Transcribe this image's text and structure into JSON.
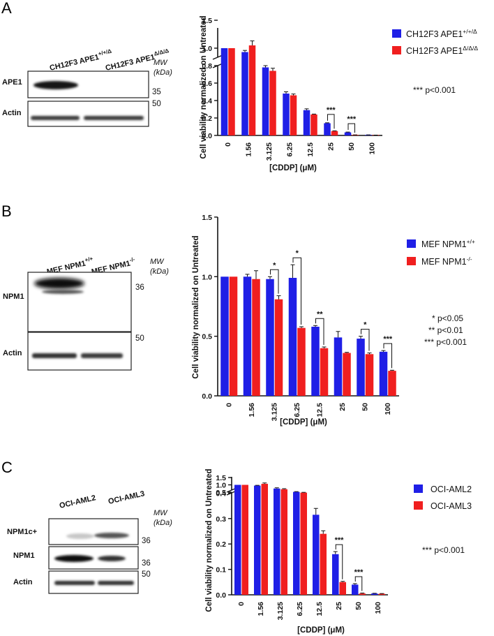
{
  "colors": {
    "series1": "#1f1fe6",
    "series2": "#f01f1f",
    "error_cap": "#2a2a8a"
  },
  "panels": [
    {
      "letter": "A",
      "blot": {
        "lanes": [
          "CH12F3 APE1",
          "CH12F3 APE1"
        ],
        "lane_sups": [
          "+/+/Δ",
          "Δ/Δ/Δ"
        ],
        "mw_title": "MW",
        "mw_unit": "(kDa)",
        "rows": [
          {
            "label": "APE1",
            "mw": "35"
          },
          {
            "label": "Actin",
            "mw": "50"
          }
        ]
      },
      "legend_sups": [
        "+/+/Δ",
        "Δ/Δ/Δ"
      ],
      "significance": [
        "*** p<0.001"
      ],
      "brackets": [
        {
          "x_index": 5,
          "stars": "***"
        },
        {
          "x_index": 6,
          "stars": "***"
        }
      ]
    },
    {
      "letter": "B",
      "blot": {
        "lanes": [
          "MEF NPM1",
          "MEF NPM1"
        ],
        "lane_sups": [
          "+/+",
          "-/-"
        ],
        "mw_title": "MW",
        "mw_unit": "(kDa)",
        "rows": [
          {
            "label": "NPM1",
            "mw": "36"
          },
          {
            "label": "Actin",
            "mw": "50"
          }
        ]
      },
      "legend_sups": [
        "+/+",
        "-/-"
      ],
      "significance": [
        "* p<0.05",
        "** p<0.01",
        "*** p<0.001"
      ],
      "brackets": [
        {
          "x_index": 2,
          "stars": "*"
        },
        {
          "x_index": 3,
          "stars": "*"
        },
        {
          "x_index": 4,
          "stars": "**"
        },
        {
          "x_index": 6,
          "stars": "*"
        },
        {
          "x_index": 7,
          "stars": "***"
        }
      ]
    },
    {
      "letter": "C",
      "blot": {
        "lanes": [
          "OCI-AML2",
          "OCI-AML3"
        ],
        "lane_sups": [
          "",
          ""
        ],
        "mw_title": "MW",
        "mw_unit": "(kDa)",
        "rows": [
          {
            "label": "NPM1c+",
            "mw": "36"
          },
          {
            "label": "NPM1",
            "mw": "36"
          },
          {
            "label": "Actin",
            "mw": "50"
          }
        ]
      },
      "legend_sups": [
        "",
        ""
      ],
      "significance": [
        "*** p<0.001"
      ],
      "brackets": [
        {
          "x_index": 5,
          "stars": "***"
        },
        {
          "x_index": 6,
          "stars": "***"
        }
      ]
    }
  ],
  "chart_data": [
    {
      "type": "bar",
      "title": "",
      "xlabel": "[CDDP] (μM)",
      "ylabel": "Cell viability normalized on Untreated",
      "categories": [
        "0",
        "1.56",
        "3.125",
        "6.25",
        "12.5",
        "25",
        "50",
        "100"
      ],
      "axis_break": {
        "lower_ylim": [
          0,
          0.8
        ],
        "upper_ylim": [
          0.9,
          1.5
        ]
      },
      "lower_ticks": [
        "0.0",
        "0.2",
        "0.4",
        "0.6",
        "0.8"
      ],
      "upper_ticks": [
        "1.0",
        "1.5"
      ],
      "series": [
        {
          "name": "CH12F3 APE1",
          "values": [
            1.0,
            0.93,
            0.78,
            0.48,
            0.29,
            0.14,
            0.035,
            0.005
          ],
          "errors": [
            0.0,
            0.03,
            0.02,
            0.02,
            0.015,
            0.005,
            0.004,
            0.002
          ]
        },
        {
          "name": "CH12F3 APE1",
          "values": [
            1.0,
            1.05,
            0.74,
            0.46,
            0.24,
            0.05,
            0.005,
            0.003
          ],
          "errors": [
            0.0,
            0.08,
            0.03,
            0.015,
            0.005,
            0.003,
            0.002,
            0.001
          ]
        }
      ]
    },
    {
      "type": "bar",
      "title": "",
      "xlabel": "[CDDP] (μM)",
      "ylabel": "Cell viability normalized on Untreated",
      "categories": [
        "0",
        "1.56",
        "3.125",
        "6.25",
        "12.5",
        "25",
        "50",
        "100"
      ],
      "ylim": [
        0,
        1.5
      ],
      "yticks": [
        "0.0",
        "0.5",
        "1.0",
        "1.5"
      ],
      "series": [
        {
          "name": "MEF NPM1",
          "values": [
            1.0,
            1.0,
            0.98,
            0.99,
            0.58,
            0.49,
            0.48,
            0.37
          ],
          "errors": [
            0.0,
            0.02,
            0.02,
            0.11,
            0.01,
            0.05,
            0.02,
            0.01
          ]
        },
        {
          "name": "MEF NPM1",
          "values": [
            1.0,
            0.98,
            0.81,
            0.57,
            0.4,
            0.36,
            0.35,
            0.21
          ],
          "errors": [
            0.0,
            0.07,
            0.03,
            0.01,
            0.01,
            0.005,
            0.01,
            0.005
          ]
        }
      ]
    },
    {
      "type": "bar",
      "title": "",
      "xlabel": "[CDDP] (μM)",
      "ylabel": "Cell viability normalized on Untreated",
      "categories": [
        "0",
        "1.56",
        "3.125",
        "6.25",
        "12.5",
        "25",
        "50",
        "100"
      ],
      "axis_break": {
        "lower_ylim": [
          0,
          0.4
        ],
        "upper_ylim": [
          0.45,
          1.5
        ]
      },
      "lower_ticks": [
        "0.0",
        "0.1",
        "0.2",
        "0.3",
        "0.4"
      ],
      "upper_ticks": [
        "0.5",
        "1.0",
        "1.5"
      ],
      "series": [
        {
          "name": "OCI-AML2",
          "values": [
            1.0,
            0.95,
            0.75,
            0.52,
            0.315,
            0.16,
            0.04,
            0.005
          ],
          "errors": [
            0.0,
            0.02,
            0.05,
            0.02,
            0.025,
            0.01,
            0.004,
            0.001
          ]
        },
        {
          "name": "OCI-AML3",
          "values": [
            1.0,
            1.07,
            0.7,
            0.47,
            0.24,
            0.05,
            0.005,
            0.004
          ],
          "errors": [
            0.0,
            0.06,
            0.04,
            0.02,
            0.012,
            0.003,
            0.002,
            0.001
          ]
        }
      ]
    }
  ]
}
